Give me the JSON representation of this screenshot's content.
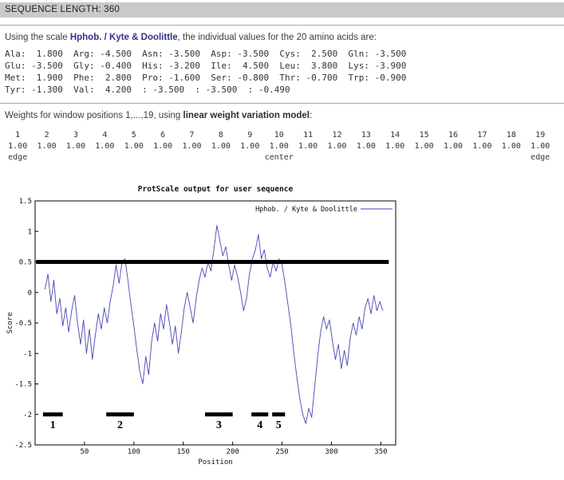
{
  "header": {
    "sequence_length": "SEQUENCE LENGTH: 360"
  },
  "scale_section": {
    "prefix": "Using the scale ",
    "scale_name": "Hphob. / Kyte & Doolittle",
    "suffix": ", the individual values for the 20 amino acids are:",
    "value_rows": [
      "Ala:  1.800  Arg: -4.500  Asn: -3.500  Asp: -3.500  Cys:  2.500  Gln: -3.500",
      "Glu: -3.500  Gly: -0.400  His: -3.200  Ile:  4.500  Leu:  3.800  Lys: -3.900",
      "Met:  1.900  Phe:  2.800  Pro: -1.600  Ser: -0.800  Thr: -0.700  Trp: -0.900",
      "Tyr: -1.300  Val:  4.200  : -3.500  : -3.500  : -0.490"
    ]
  },
  "weights_section": {
    "prefix": "Weights for window positions 1,...,19, using ",
    "model_name": "linear weight variation model",
    "suffix": ":",
    "columns": [
      {
        "index": "1",
        "value": "1.00",
        "footer": "edge"
      },
      {
        "index": "2",
        "value": "1.00",
        "footer": ""
      },
      {
        "index": "3",
        "value": "1.00",
        "footer": ""
      },
      {
        "index": "4",
        "value": "1.00",
        "footer": ""
      },
      {
        "index": "5",
        "value": "1.00",
        "footer": ""
      },
      {
        "index": "6",
        "value": "1.00",
        "footer": ""
      },
      {
        "index": "7",
        "value": "1.00",
        "footer": ""
      },
      {
        "index": "8",
        "value": "1.00",
        "footer": ""
      },
      {
        "index": "9",
        "value": "1.00",
        "footer": ""
      },
      {
        "index": "10",
        "value": "1.00",
        "footer": "center"
      },
      {
        "index": "11",
        "value": "1.00",
        "footer": ""
      },
      {
        "index": "12",
        "value": "1.00",
        "footer": ""
      },
      {
        "index": "13",
        "value": "1.00",
        "footer": ""
      },
      {
        "index": "14",
        "value": "1.00",
        "footer": ""
      },
      {
        "index": "15",
        "value": "1.00",
        "footer": ""
      },
      {
        "index": "16",
        "value": "1.00",
        "footer": ""
      },
      {
        "index": "17",
        "value": "1.00",
        "footer": ""
      },
      {
        "index": "18",
        "value": "1.00",
        "footer": ""
      },
      {
        "index": "19",
        "value": "1.00",
        "footer": "edge"
      }
    ]
  },
  "chart_data": {
    "type": "line",
    "title": "ProtScale output for user sequence",
    "xlabel": "Position",
    "ylabel": "Score",
    "xlim": [
      0,
      365
    ],
    "ylim": [
      -2.5,
      1.5
    ],
    "x_ticks": [
      50,
      100,
      150,
      200,
      250,
      300,
      350
    ],
    "y_ticks": [
      1.5,
      1,
      0.5,
      0,
      -0.5,
      -1,
      -1.5,
      -2,
      -2.5
    ],
    "grid": false,
    "legend": {
      "label": "Hphob. / Kyte & Doolittle",
      "position": "top-right"
    },
    "line_color": "#4646b4",
    "threshold_line": {
      "y": 0.5,
      "x_start": 1,
      "x_end": 358,
      "color": "#000000",
      "width": 5
    },
    "regions": [
      {
        "label": "1",
        "x_start": 8,
        "x_end": 28,
        "y": -2.0
      },
      {
        "label": "2",
        "x_start": 72,
        "x_end": 100,
        "y": -2.0
      },
      {
        "label": "3",
        "x_start": 172,
        "x_end": 200,
        "y": -2.0
      },
      {
        "label": "4",
        "x_start": 219,
        "x_end": 236,
        "y": -2.0
      },
      {
        "label": "5",
        "x_start": 240,
        "x_end": 253,
        "y": -2.0
      }
    ],
    "series": [
      {
        "name": "Hphob. / Kyte & Doolittle",
        "x": [
          10,
          13,
          16,
          19,
          22,
          25,
          28,
          31,
          34,
          37,
          40,
          43,
          46,
          49,
          52,
          55,
          58,
          61,
          64,
          67,
          70,
          73,
          76,
          79,
          82,
          85,
          88,
          91,
          94,
          97,
          100,
          103,
          106,
          109,
          112,
          115,
          118,
          121,
          124,
          127,
          130,
          133,
          136,
          139,
          142,
          145,
          148,
          151,
          154,
          157,
          160,
          163,
          166,
          169,
          172,
          175,
          178,
          181,
          184,
          187,
          190,
          193,
          196,
          199,
          202,
          205,
          208,
          211,
          214,
          217,
          220,
          223,
          226,
          229,
          232,
          235,
          238,
          241,
          244,
          247,
          250,
          253,
          256,
          259,
          262,
          265,
          268,
          271,
          274,
          277,
          280,
          283,
          286,
          289,
          292,
          295,
          298,
          301,
          304,
          307,
          310,
          313,
          316,
          319,
          322,
          325,
          328,
          331,
          334,
          337,
          340,
          343,
          346,
          349,
          352
        ],
        "y": [
          0.05,
          0.3,
          -0.15,
          0.2,
          -0.35,
          -0.1,
          -0.55,
          -0.25,
          -0.65,
          -0.3,
          -0.05,
          -0.5,
          -0.85,
          -0.45,
          -1.0,
          -0.6,
          -1.1,
          -0.7,
          -0.35,
          -0.6,
          -0.25,
          -0.5,
          -0.15,
          0.1,
          0.45,
          0.15,
          0.5,
          0.55,
          0.2,
          -0.2,
          -0.55,
          -0.95,
          -1.3,
          -1.5,
          -1.05,
          -1.35,
          -0.8,
          -0.5,
          -0.8,
          -0.35,
          -0.6,
          -0.2,
          -0.5,
          -0.85,
          -0.55,
          -1.0,
          -0.65,
          -0.25,
          0.0,
          -0.25,
          -0.5,
          -0.1,
          0.2,
          0.4,
          0.25,
          0.5,
          0.35,
          0.7,
          1.1,
          0.85,
          0.6,
          0.75,
          0.45,
          0.2,
          0.45,
          0.25,
          0.0,
          -0.3,
          -0.1,
          0.3,
          0.55,
          0.7,
          0.95,
          0.55,
          0.7,
          0.4,
          0.25,
          0.5,
          0.35,
          0.55,
          0.45,
          0.15,
          -0.2,
          -0.55,
          -1.0,
          -1.4,
          -1.75,
          -2.0,
          -2.15,
          -1.9,
          -2.05,
          -1.55,
          -1.05,
          -0.65,
          -0.4,
          -0.6,
          -0.45,
          -0.8,
          -1.1,
          -0.85,
          -1.25,
          -0.95,
          -1.2,
          -0.75,
          -0.5,
          -0.7,
          -0.4,
          -0.6,
          -0.25,
          -0.1,
          -0.35,
          -0.05,
          -0.3,
          -0.15,
          -0.3
        ]
      }
    ]
  }
}
